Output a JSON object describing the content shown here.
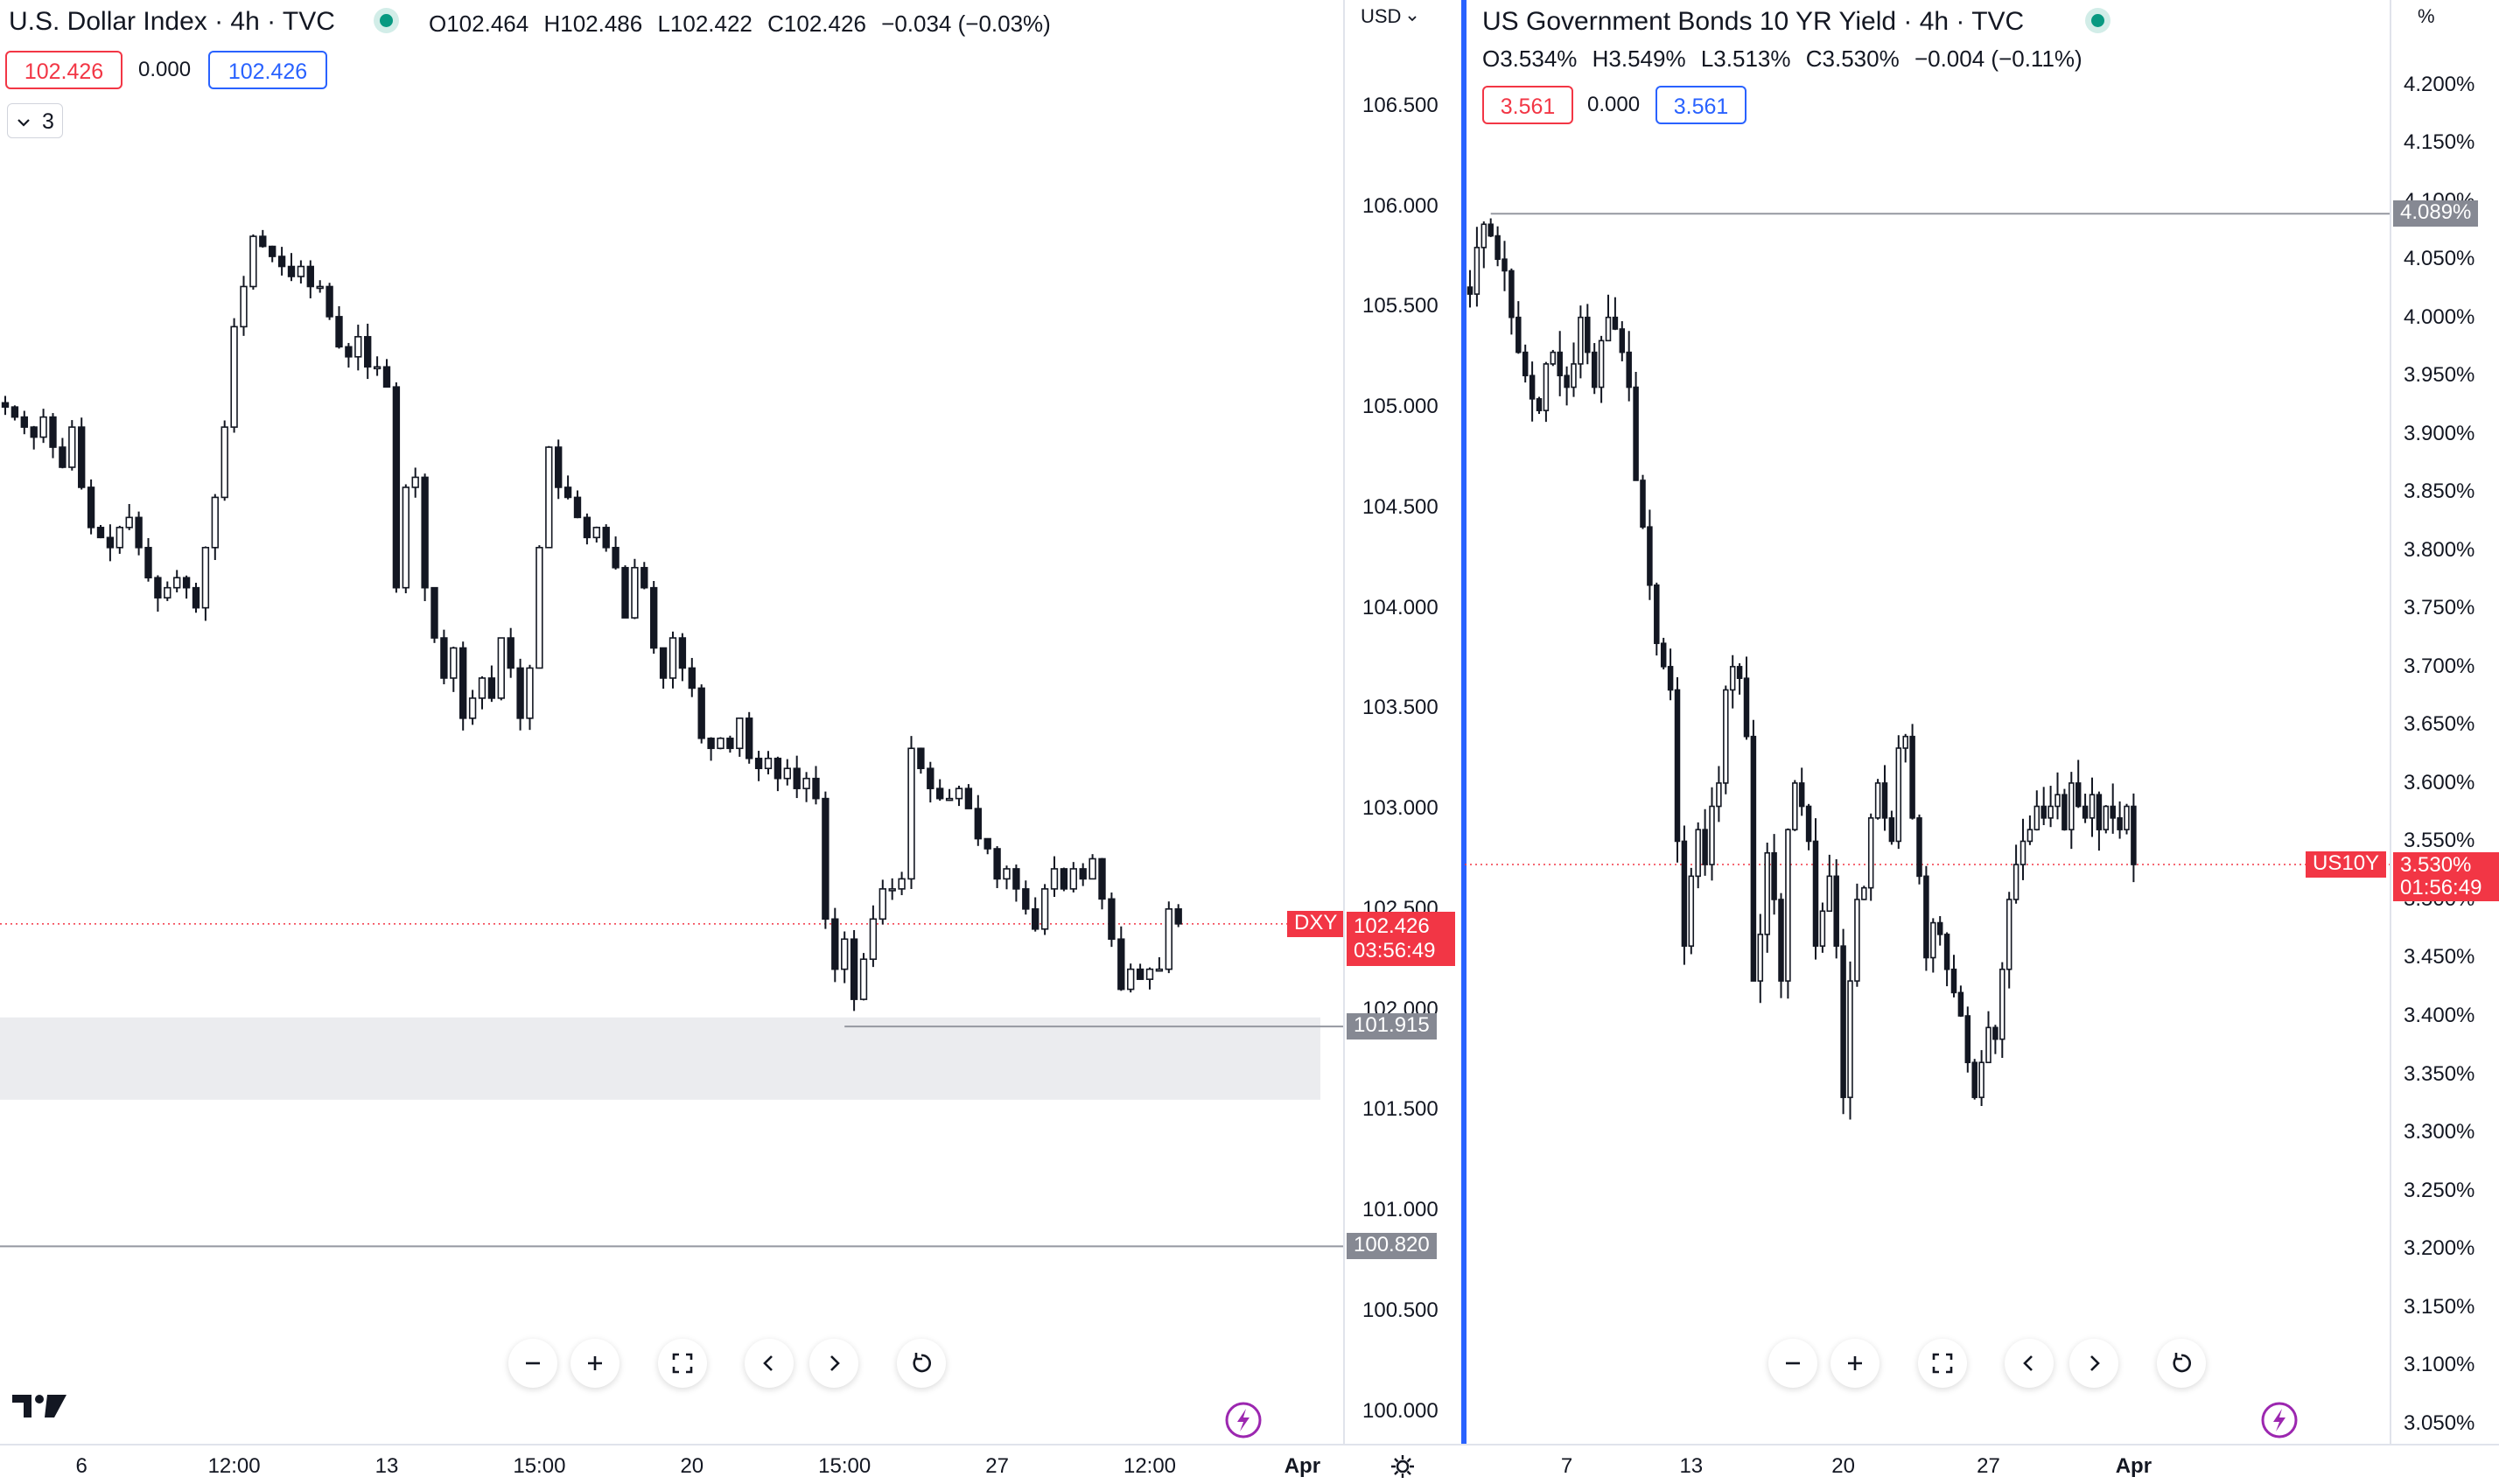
{
  "chart_data": [
    {
      "type": "candlestick",
      "symbol_label": "DXY",
      "title": "U.S. Dollar Index · 4h · TVC",
      "ohlc": {
        "open": "O102.464",
        "high": "H102.486",
        "low": "L102.422",
        "close": "C102.426",
        "change": "−0.034 (−0.03%)"
      },
      "bid": "102.426",
      "spread": "0.000",
      "ask": "102.426",
      "indicator_toggle": "3",
      "currency": "USD",
      "y_ticks": [
        "106.500",
        "106.000",
        "105.500",
        "105.000",
        "104.500",
        "104.000",
        "103.500",
        "103.000",
        "102.500",
        "102.000",
        "101.500",
        "101.000",
        "100.500",
        "100.000"
      ],
      "ylim": [
        99.95,
        106.6
      ],
      "x_ticks": [
        {
          "label": "6",
          "bar": 8,
          "bold": false
        },
        {
          "label": "12:00",
          "bar": 24,
          "bold": false
        },
        {
          "label": "13",
          "bar": 40,
          "bold": false
        },
        {
          "label": "15:00",
          "bar": 56,
          "bold": false
        },
        {
          "label": "20",
          "bar": 72,
          "bold": false
        },
        {
          "label": "15:00",
          "bar": 88,
          "bold": false
        },
        {
          "label": "27",
          "bar": 104,
          "bold": false
        },
        {
          "label": "12:00",
          "bar": 120,
          "bold": false
        },
        {
          "label": "Apr",
          "bar": 136,
          "bold": true
        }
      ],
      "last_price": "102.426",
      "last_value": 102.426,
      "countdown": "03:56:49",
      "levels": [
        {
          "label": "101.915",
          "value": 101.915
        },
        {
          "label": "100.820",
          "value": 100.82
        }
      ],
      "zone": {
        "top": 101.96,
        "bottom": 101.55
      },
      "closes": [
        105.0,
        104.95,
        104.9,
        104.85,
        104.95,
        104.8,
        104.7,
        104.9,
        104.6,
        104.4,
        104.35,
        104.3,
        104.4,
        104.45,
        104.3,
        104.15,
        104.05,
        104.1,
        104.15,
        104.1,
        104.0,
        104.3,
        104.55,
        104.9,
        105.4,
        105.6,
        105.85,
        105.8,
        105.75,
        105.7,
        105.65,
        105.7,
        105.6,
        105.6,
        105.45,
        105.3,
        105.25,
        105.35,
        105.2,
        105.2,
        105.1,
        104.1,
        104.6,
        104.65,
        104.1,
        103.85,
        103.65,
        103.8,
        103.45,
        103.55,
        103.65,
        103.55,
        103.85,
        103.7,
        103.45,
        103.7,
        104.3,
        104.8,
        104.6,
        104.55,
        104.45,
        104.35,
        104.4,
        104.3,
        104.2,
        103.95,
        104.2,
        104.1,
        103.8,
        103.65,
        103.85,
        103.7,
        103.6,
        103.35,
        103.3,
        103.35,
        103.3,
        103.45,
        103.25,
        103.2,
        103.25,
        103.15,
        103.2,
        103.1,
        103.15,
        103.05,
        102.45,
        102.2,
        102.35,
        102.05,
        102.25,
        102.45,
        102.6,
        102.6,
        102.65,
        103.3,
        103.2,
        103.1,
        103.05,
        103.05,
        103.1,
        103.0,
        102.85,
        102.8,
        102.65,
        102.7,
        102.6,
        102.5,
        102.4,
        102.6,
        102.7,
        102.6,
        102.7,
        102.65,
        102.75,
        102.55,
        102.35,
        102.1,
        102.2,
        102.15,
        102.2,
        102.2,
        102.5,
        102.426
      ],
      "series": [
        {
          "name": "DXY",
          "values": []
        }
      ]
    },
    {
      "type": "candlestick",
      "symbol_label": "US10Y",
      "title": "US Government Bonds 10 YR Yield · 4h · TVC",
      "ohlc": {
        "open": "O3.534%",
        "high": "H3.549%",
        "low": "L3.513%",
        "close": "C3.530%",
        "change": "−0.004 (−0.11%)"
      },
      "bid": "3.561",
      "spread": "0.000",
      "ask": "3.561",
      "currency": "%",
      "y_ticks": [
        "4.200%",
        "4.150%",
        "4.100%",
        "4.050%",
        "4.000%",
        "3.950%",
        "3.900%",
        "3.850%",
        "3.800%",
        "3.750%",
        "3.700%",
        "3.650%",
        "3.600%",
        "3.550%",
        "3.500%",
        "3.450%",
        "3.400%",
        "3.350%",
        "3.300%",
        "3.250%",
        "3.200%",
        "3.150%",
        "3.100%",
        "3.050%"
      ],
      "ylim": [
        3.04,
        4.22
      ],
      "x_ticks": [
        {
          "label": "7",
          "bar": 14,
          "bold": false
        },
        {
          "label": "13",
          "bar": 32,
          "bold": false
        },
        {
          "label": "20",
          "bar": 54,
          "bold": false
        },
        {
          "label": "27",
          "bar": 75,
          "bold": false
        },
        {
          "label": "Apr",
          "bar": 96,
          "bold": true
        }
      ],
      "last_price": "3.530%",
      "last_value": 3.53,
      "countdown": "01:56:49",
      "levels": [
        {
          "label": "4.089%",
          "value": 4.089
        }
      ],
      "closes": [
        4.02,
        4.06,
        4.08,
        4.07,
        4.05,
        4.04,
        4.0,
        3.97,
        3.95,
        3.93,
        3.92,
        3.96,
        3.97,
        3.95,
        3.94,
        3.96,
        4.0,
        3.97,
        3.94,
        3.98,
        4.0,
        3.99,
        3.97,
        3.94,
        3.86,
        3.82,
        3.77,
        3.72,
        3.7,
        3.68,
        3.55,
        3.46,
        3.52,
        3.56,
        3.53,
        3.58,
        3.6,
        3.68,
        3.7,
        3.69,
        3.64,
        3.43,
        3.47,
        3.54,
        3.5,
        3.43,
        3.56,
        3.6,
        3.58,
        3.55,
        3.46,
        3.49,
        3.52,
        3.46,
        3.33,
        3.43,
        3.5,
        3.51,
        3.57,
        3.6,
        3.57,
        3.55,
        3.63,
        3.64,
        3.57,
        3.52,
        3.45,
        3.48,
        3.47,
        3.44,
        3.42,
        3.4,
        3.36,
        3.33,
        3.36,
        3.39,
        3.38,
        3.44,
        3.5,
        3.53,
        3.55,
        3.56,
        3.58,
        3.57,
        3.58,
        3.59,
        3.56,
        3.6,
        3.58,
        3.57,
        3.59,
        3.56,
        3.58,
        3.57,
        3.56,
        3.58,
        3.53
      ],
      "series": [
        {
          "name": "US10Y",
          "values": []
        }
      ]
    }
  ],
  "controls": {
    "zoom_out": "zoom-out",
    "zoom_in": "zoom-in",
    "fit": "fit-screen",
    "prev": "scroll-left",
    "next": "scroll-right",
    "reset": "reset"
  },
  "brand": "TV"
}
